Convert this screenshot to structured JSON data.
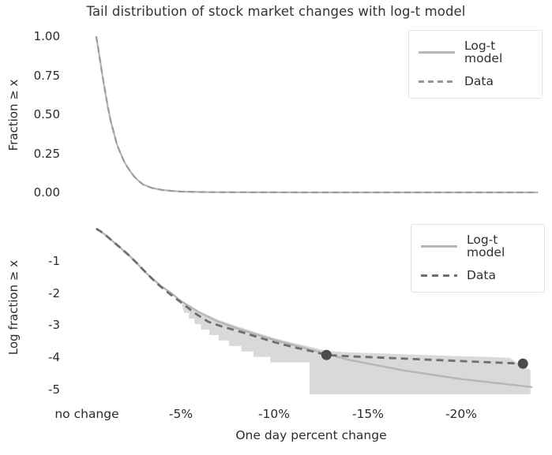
{
  "title": "Tail distribution of stock market changes with log-t model",
  "colors": {
    "background": "#ffffff",
    "model_line": "#b6b6b6",
    "data_line_top": "#9b9b9b",
    "data_line_bottom": "#6e6e6e",
    "confidence_band": "#d9d9d9",
    "marker_dot": "#4b4b4b",
    "text": "#2c2c2c",
    "legend_border": "#e4e4e4"
  },
  "top_plot": {
    "ylabel": "Fraction ≥ x",
    "yticks": [
      {
        "label": "1.00",
        "value": 1.0
      },
      {
        "label": "0.75",
        "value": 0.75
      },
      {
        "label": "0.50",
        "value": 0.5
      },
      {
        "label": "0.25",
        "value": 0.25
      },
      {
        "label": "0.00",
        "value": 0.0
      }
    ],
    "legend": [
      {
        "label": "Log-t model",
        "style": "solid"
      },
      {
        "label": "Data",
        "style": "dashed"
      }
    ]
  },
  "bottom_plot": {
    "ylabel": "Log fraction ≥ x",
    "yticks": [
      {
        "label": "-1",
        "value": -1
      },
      {
        "label": "-2",
        "value": -2
      },
      {
        "label": "-3",
        "value": -3
      },
      {
        "label": "-4",
        "value": -4
      },
      {
        "label": "-5",
        "value": -5
      }
    ],
    "legend": [
      {
        "label": "Log-t model",
        "style": "solid"
      },
      {
        "label": "Data",
        "style": "dashed"
      }
    ]
  },
  "x_axis": {
    "label": "One day percent change",
    "ticks": [
      {
        "label": "no change",
        "value": 0
      },
      {
        "label": "-5%",
        "value": -5
      },
      {
        "label": "-10%",
        "value": -10
      },
      {
        "label": "-15%",
        "value": -15
      },
      {
        "label": "-20%",
        "value": -20
      }
    ]
  },
  "chart_data": [
    {
      "type": "line",
      "title": "Tail distribution of stock market changes with log-t model",
      "xlabel": "One day percent change",
      "ylabel": "Fraction ≥ x",
      "xlim": [
        0.5,
        -24.3
      ],
      "ylim": [
        0,
        1.05
      ],
      "grid": false,
      "legend_position": "upper right",
      "x": [
        -0.5,
        -0.6,
        -0.7,
        -0.8,
        -0.9,
        -1,
        -1.1,
        -1.25,
        -1.4,
        -1.6,
        -1.8,
        -2,
        -2.25,
        -2.5,
        -2.75,
        -3,
        -3.5,
        -4,
        -4.5,
        -5,
        -6,
        -7,
        -8,
        -10,
        -12,
        -14,
        -17,
        -20,
        -24.1
      ],
      "series": [
        {
          "name": "Log-t model",
          "style": "solid",
          "values": [
            1,
            0.93,
            0.85,
            0.77,
            0.7,
            0.63,
            0.56,
            0.47,
            0.4,
            0.31,
            0.25,
            0.195,
            0.147,
            0.105,
            0.075,
            0.051,
            0.028,
            0.016,
            0.01,
            0.0057,
            0.0025,
            0.0013,
            0.0008,
            0.00035,
            0.00017,
            8e-05,
            4e-05,
            2e-05,
            1e-05
          ]
        },
        {
          "name": "Data",
          "style": "dashed",
          "values": [
            1,
            0.93,
            0.85,
            0.77,
            0.7,
            0.63,
            0.56,
            0.47,
            0.4,
            0.31,
            0.25,
            0.195,
            0.147,
            0.105,
            0.075,
            0.051,
            0.028,
            0.016,
            0.01,
            0.0057,
            0.0025,
            0.0013,
            0.0008,
            0.00035,
            0.00017,
            8e-05,
            4e-05,
            2e-05,
            1e-05
          ]
        }
      ]
    },
    {
      "type": "line",
      "xlabel": "One day percent change",
      "ylabel": "Log fraction ≥ x",
      "xlim": [
        0.5,
        -24.3
      ],
      "ylim": [
        0.2,
        -5.3
      ],
      "grid": false,
      "legend_position": "upper right",
      "series": [
        {
          "name": "Log-t model",
          "style": "solid",
          "x": [
            -0.5,
            -0.6,
            -0.7,
            -0.8,
            -0.9,
            -1,
            -1.1,
            -1.25,
            -1.4,
            -1.6,
            -1.8,
            -2,
            -2.25,
            -2.5,
            -2.75,
            -3,
            -3.5,
            -4,
            -4.5,
            -5,
            -6,
            -7,
            -8,
            -10,
            -12,
            -14,
            -17,
            -20,
            -23.8
          ],
          "values": [
            0,
            -0.03,
            -0.07,
            -0.11,
            -0.155,
            -0.2,
            -0.25,
            -0.33,
            -0.4,
            -0.51,
            -0.6,
            -0.71,
            -0.83,
            -0.98,
            -1.12,
            -1.29,
            -1.55,
            -1.8,
            -2,
            -2.24,
            -2.6,
            -2.89,
            -3.1,
            -3.46,
            -3.77,
            -4.08,
            -4.42,
            -4.68,
            -4.93
          ]
        },
        {
          "name": "Data",
          "style": "dashed",
          "x": [
            -0.5,
            -0.7,
            -0.9,
            -1.1,
            -1.4,
            -1.8,
            -2.25,
            -2.75,
            -3.25,
            -3.75,
            -4.25,
            -5,
            -5.75,
            -6.5,
            -7.25,
            -8,
            -9,
            -10,
            -11,
            -12,
            -12.8,
            -14,
            -16,
            -18,
            -20,
            -22,
            -23.3
          ],
          "values": [
            0,
            -0.07,
            -0.155,
            -0.25,
            -0.4,
            -0.6,
            -0.83,
            -1.12,
            -1.42,
            -1.71,
            -1.95,
            -2.28,
            -2.62,
            -2.9,
            -3.05,
            -3.17,
            -3.35,
            -3.53,
            -3.68,
            -3.81,
            -3.93,
            -3.97,
            -4.02,
            -4.07,
            -4.12,
            -4.17,
            -4.2
          ]
        }
      ],
      "confidence_band": {
        "upper": [
          [
            -5.1,
            -2.3
          ],
          [
            -6,
            -2.57
          ],
          [
            -7,
            -2.83
          ],
          [
            -8,
            -3.03
          ],
          [
            -9,
            -3.22
          ],
          [
            -10,
            -3.4
          ],
          [
            -11,
            -3.55
          ],
          [
            -12,
            -3.68
          ],
          [
            -12.8,
            -3.8
          ],
          [
            -14,
            -3.85
          ],
          [
            -16,
            -3.89
          ],
          [
            -18,
            -3.93
          ],
          [
            -20,
            -3.97
          ],
          [
            -21.5,
            -3.99
          ],
          [
            -22.6,
            -4.02
          ],
          [
            -23.1,
            -4.22
          ],
          [
            -23.7,
            -4.4
          ]
        ],
        "lower": [
          [
            -5.1,
            -2.42
          ],
          [
            -5.2,
            -2.62
          ],
          [
            -5.45,
            -2.62
          ],
          [
            -5.45,
            -2.8
          ],
          [
            -5.75,
            -2.8
          ],
          [
            -5.75,
            -2.97
          ],
          [
            -6.1,
            -2.97
          ],
          [
            -6.1,
            -3.14
          ],
          [
            -6.55,
            -3.14
          ],
          [
            -6.55,
            -3.31
          ],
          [
            -7.05,
            -3.31
          ],
          [
            -7.05,
            -3.48
          ],
          [
            -7.6,
            -3.48
          ],
          [
            -7.6,
            -3.65
          ],
          [
            -8.25,
            -3.65
          ],
          [
            -8.25,
            -3.82
          ],
          [
            -8.9,
            -3.82
          ],
          [
            -8.9,
            -3.99
          ],
          [
            -9.8,
            -3.99
          ],
          [
            -9.8,
            -4.16
          ],
          [
            -11.9,
            -4.16
          ],
          [
            -11.9,
            -5.15
          ],
          [
            -23.7,
            -5.15
          ]
        ]
      },
      "markers": [
        [
          -12.8,
          -3.93
        ],
        [
          -23.3,
          -4.2
        ]
      ]
    }
  ]
}
